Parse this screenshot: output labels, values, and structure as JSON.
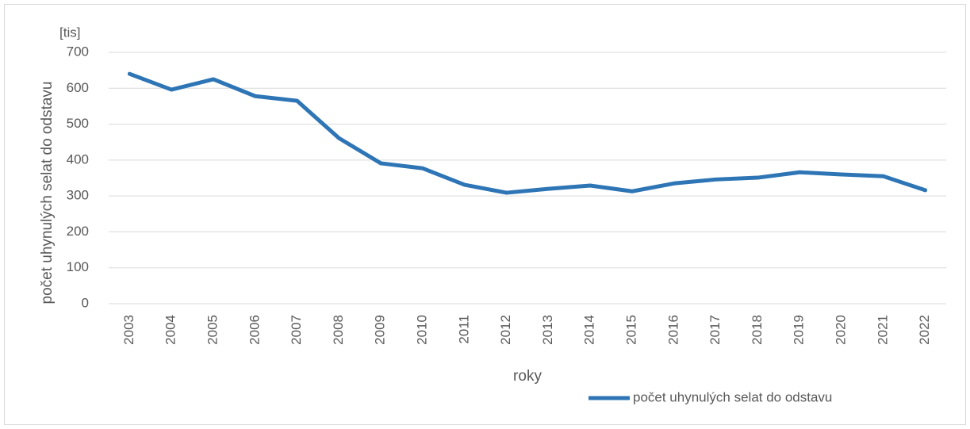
{
  "chart_data": {
    "type": "line",
    "y_label": "počet uhynulých selat do odstavu",
    "x_label": "roky",
    "unit_label": "[tis]",
    "categories": [
      "2003",
      "2004",
      "2005",
      "2006",
      "2007",
      "2008",
      "2009",
      "2010",
      "2011",
      "2012",
      "2013",
      "2014",
      "2015",
      "2016",
      "2017",
      "2018",
      "2019",
      "2020",
      "2021",
      "2022"
    ],
    "series": [
      {
        "name": "počet uhynulých selat do odstavu",
        "color": "#2e75b6",
        "values": [
          640,
          596,
          625,
          578,
          565,
          461,
          391,
          377,
          331,
          309,
          320,
          329,
          313,
          335,
          346,
          351,
          366,
          360,
          355,
          316
        ]
      }
    ],
    "ylim": [
      0,
      700
    ],
    "yticks": [
      0,
      100,
      200,
      300,
      400,
      500,
      600,
      700
    ],
    "grid": true,
    "legend": "bottom-right"
  }
}
